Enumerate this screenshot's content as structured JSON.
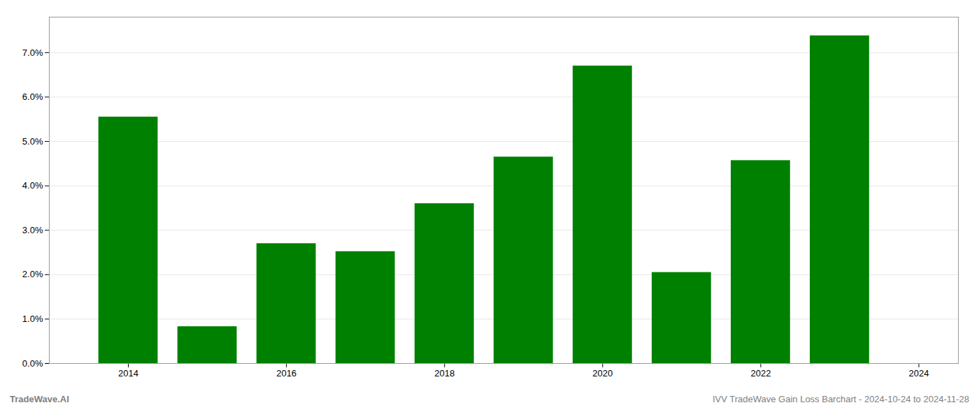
{
  "chart_data": {
    "type": "bar",
    "x": [
      2014,
      2015,
      2016,
      2017,
      2018,
      2019,
      2020,
      2021,
      2022,
      2023
    ],
    "values": [
      0.0555,
      0.0083,
      0.027,
      0.0252,
      0.036,
      0.0465,
      0.067,
      0.0205,
      0.0457,
      0.0738
    ],
    "color": "#008000",
    "xlim": [
      2013.0,
      2024.5
    ],
    "xticks": [
      2014,
      2016,
      2018,
      2020,
      2022,
      2024
    ],
    "ylim": [
      0,
      0.078
    ],
    "yticks": [
      {
        "value": 0.0,
        "label": "0.0%"
      },
      {
        "value": 0.01,
        "label": "1.0%"
      },
      {
        "value": 0.02,
        "label": "2.0%"
      },
      {
        "value": 0.03,
        "label": "3.0%"
      },
      {
        "value": 0.04,
        "label": "4.0%"
      },
      {
        "value": 0.05,
        "label": "5.0%"
      },
      {
        "value": 0.06,
        "label": "6.0%"
      },
      {
        "value": 0.07,
        "label": "7.0%"
      }
    ],
    "grid": true,
    "annotations": [
      "TradeWave.AI",
      "IVV TradeWave Gain Loss Barchart - 2024-10-24 to 2024-11-28"
    ]
  }
}
